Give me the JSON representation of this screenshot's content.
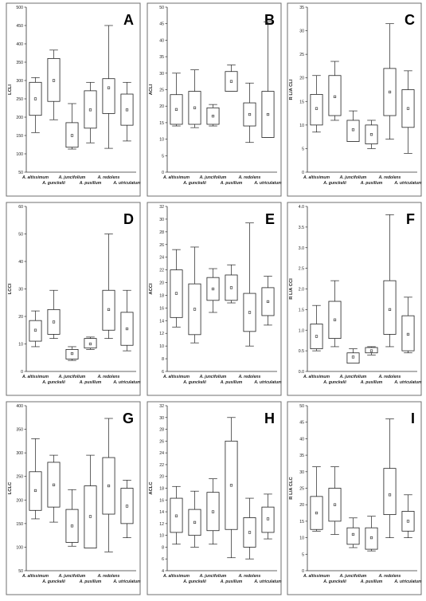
{
  "chart_data": [
    {
      "letter": "A",
      "type": "boxplot",
      "ylabel": "LCLI",
      "ylim": [
        50,
        500
      ],
      "yticks": [
        50,
        100,
        150,
        200,
        250,
        300,
        350,
        400,
        450,
        500
      ],
      "tick_step": 50,
      "boxes": [
        {
          "category": "A. altissimum",
          "min": 158,
          "q1": 205,
          "median": 250,
          "q3": 295,
          "max": 308,
          "mean": 250
        },
        {
          "category": "A. gunckelii",
          "min": 193,
          "q1": 243,
          "median": 300,
          "q3": 360,
          "max": 383,
          "mean": 300
        },
        {
          "category": "A. juncifolium",
          "min": 113,
          "q1": 118,
          "median": 150,
          "q3": 185,
          "max": 237,
          "mean": 150
        },
        {
          "category": "A. pusillum",
          "min": 130,
          "q1": 170,
          "median": 220,
          "q3": 272,
          "max": 295,
          "mean": 220
        },
        {
          "category": "A. redolens",
          "min": 115,
          "q1": 210,
          "median": 280,
          "q3": 305,
          "max": 450,
          "mean": 280
        },
        {
          "category": "A. utriculatum",
          "min": 135,
          "q1": 178,
          "median": 220,
          "q3": 263,
          "max": 295,
          "mean": 220
        }
      ]
    },
    {
      "letter": "B",
      "type": "boxplot",
      "ylabel": "ACLI",
      "ylim": [
        0,
        50
      ],
      "yticks": [
        0,
        5,
        10,
        15,
        20,
        25,
        30,
        35,
        40,
        45,
        50
      ],
      "tick_step": 5,
      "boxes": [
        {
          "category": "A. altissimum",
          "min": 14,
          "q1": 14.5,
          "median": 19,
          "q3": 23.5,
          "max": 30,
          "mean": 19
        },
        {
          "category": "A. gunckelii",
          "min": 13.5,
          "q1": 14.5,
          "median": 19.5,
          "q3": 24.5,
          "max": 31,
          "mean": 19.5
        },
        {
          "category": "A. juncifolium",
          "min": 14,
          "q1": 14.5,
          "median": 17,
          "q3": 19.5,
          "max": 20.5,
          "mean": 17
        },
        {
          "category": "A. pusillum",
          "min": 24.5,
          "q1": 24.5,
          "median": 27.5,
          "q3": 30.5,
          "max": 32.5,
          "mean": 27.5
        },
        {
          "category": "A. redolens",
          "min": 9,
          "q1": 14,
          "median": 17.5,
          "q3": 21,
          "max": 27,
          "mean": 17.5
        },
        {
          "category": "A. utriculatum",
          "min": 10.5,
          "q1": 10.5,
          "median": 17.5,
          "q3": 24.5,
          "max": 45.5,
          "mean": 17.5
        }
      ]
    },
    {
      "letter": "C",
      "type": "boxplot",
      "ylabel": "R L/A CLI",
      "ylim": [
        0,
        35
      ],
      "yticks": [
        0,
        5,
        10,
        15,
        20,
        25,
        30,
        35
      ],
      "tick_step": 5,
      "boxes": [
        {
          "category": "A. altissimum",
          "min": 8.5,
          "q1": 10,
          "median": 13.5,
          "q3": 16.5,
          "max": 20.5,
          "mean": 13.5
        },
        {
          "category": "A. gunckelii",
          "min": 11,
          "q1": 12,
          "median": 16,
          "q3": 20.5,
          "max": 23.5,
          "mean": 16
        },
        {
          "category": "A. juncifolium",
          "min": 6.5,
          "q1": 6.5,
          "median": 9,
          "q3": 11,
          "max": 13,
          "mean": 9
        },
        {
          "category": "A. pusillum",
          "min": 5,
          "q1": 6,
          "median": 8,
          "q3": 10,
          "max": 11,
          "mean": 8
        },
        {
          "category": "A. redolens",
          "min": 7,
          "q1": 12,
          "median": 17,
          "q3": 22,
          "max": 31.5,
          "mean": 17
        },
        {
          "category": "A. utriculatum",
          "min": 4,
          "q1": 9.5,
          "median": 13.5,
          "q3": 17.5,
          "max": 21.5,
          "mean": 13.5
        }
      ]
    },
    {
      "letter": "D",
      "type": "boxplot",
      "ylabel": "LCCI",
      "ylim": [
        0,
        60
      ],
      "yticks": [
        0,
        10,
        20,
        30,
        40,
        50,
        60
      ],
      "tick_step": 10,
      "boxes": [
        {
          "category": "A. altissimum",
          "min": 9,
          "q1": 11,
          "median": 15,
          "q3": 18.5,
          "max": 22,
          "mean": 15
        },
        {
          "category": "A. gunckelii",
          "min": 12,
          "q1": 13.5,
          "median": 18,
          "q3": 22.5,
          "max": 29.5,
          "mean": 18
        },
        {
          "category": "A. juncifolium",
          "min": 4,
          "q1": 4.5,
          "median": 6.5,
          "q3": 8,
          "max": 9,
          "mean": 6.5
        },
        {
          "category": "A. pusillum",
          "min": 8,
          "q1": 8.5,
          "median": 10,
          "q3": 12,
          "max": 12.5,
          "mean": 10
        },
        {
          "category": "A. redolens",
          "min": 12,
          "q1": 15,
          "median": 22.5,
          "q3": 29.5,
          "max": 50,
          "mean": 22.5
        },
        {
          "category": "A. utriculatum",
          "min": 7.5,
          "q1": 9.5,
          "median": 15.5,
          "q3": 21.5,
          "max": 29.5,
          "mean": 15.5
        }
      ]
    },
    {
      "letter": "E",
      "type": "boxplot",
      "ylabel": "ACCI",
      "ylim": [
        6,
        32
      ],
      "yticks": [
        6,
        8,
        10,
        12,
        14,
        16,
        18,
        20,
        22,
        24,
        26,
        28,
        30,
        32
      ],
      "tick_step": 2,
      "boxes": [
        {
          "category": "A. altissimum",
          "min": 13,
          "q1": 14.5,
          "median": 18.3,
          "q3": 22,
          "max": 25.2,
          "mean": 18.3
        },
        {
          "category": "A. gunckelii",
          "min": 10.5,
          "q1": 11.8,
          "median": 15.8,
          "q3": 19.8,
          "max": 25.6,
          "mean": 15.8
        },
        {
          "category": "A. juncifolium",
          "min": 15.3,
          "q1": 17.2,
          "median": 19,
          "q3": 20.8,
          "max": 22.2,
          "mean": 19
        },
        {
          "category": "A. pusillum",
          "min": 16.8,
          "q1": 17.2,
          "median": 19.2,
          "q3": 21.2,
          "max": 22.8,
          "mean": 19.2
        },
        {
          "category": "A. redolens",
          "min": 10,
          "q1": 12.3,
          "median": 15.3,
          "q3": 18.3,
          "max": 29.4,
          "mean": 15.3
        },
        {
          "category": "A. utriculatum",
          "min": 13.3,
          "q1": 14.8,
          "median": 17,
          "q3": 19.2,
          "max": 21,
          "mean": 17
        }
      ]
    },
    {
      "letter": "F",
      "type": "boxplot",
      "ylabel": "R L/A CCI",
      "ylim": [
        0,
        4
      ],
      "yticks": [
        0,
        0.5,
        1.0,
        1.5,
        2.0,
        2.5,
        3.0,
        3.5,
        4.0
      ],
      "tick_step": 0.5,
      "boxes": [
        {
          "category": "A. altissimum",
          "min": 0.5,
          "q1": 0.55,
          "median": 0.85,
          "q3": 1.15,
          "max": 1.6,
          "mean": 0.85
        },
        {
          "category": "A. gunckelii",
          "min": 0.6,
          "q1": 0.8,
          "median": 1.25,
          "q3": 1.7,
          "max": 2.2,
          "mean": 1.25
        },
        {
          "category": "A. juncifolium",
          "min": 0.2,
          "q1": 0.2,
          "median": 0.35,
          "q3": 0.45,
          "max": 0.55,
          "mean": 0.35
        },
        {
          "category": "A. pusillum",
          "min": 0.4,
          "q1": 0.45,
          "median": 0.5,
          "q3": 0.58,
          "max": 0.6,
          "mean": 0.5
        },
        {
          "category": "A. redolens",
          "min": 0.6,
          "q1": 0.9,
          "median": 1.5,
          "q3": 2.2,
          "max": 3.8,
          "mean": 1.5
        },
        {
          "category": "A. utriculatum",
          "min": 0.45,
          "q1": 0.5,
          "median": 0.9,
          "q3": 1.35,
          "max": 1.8,
          "mean": 0.9
        }
      ]
    },
    {
      "letter": "G",
      "type": "boxplot",
      "ylabel": "LCLC",
      "ylim": [
        50,
        400
      ],
      "yticks": [
        50,
        100,
        150,
        200,
        250,
        300,
        350,
        400
      ],
      "tick_step": 50,
      "boxes": [
        {
          "category": "A. altissimum",
          "min": 160,
          "q1": 178,
          "median": 220,
          "q3": 260,
          "max": 330,
          "mean": 220
        },
        {
          "category": "A. gunckelii",
          "min": 153,
          "q1": 185,
          "median": 232,
          "q3": 280,
          "max": 295,
          "mean": 232
        },
        {
          "category": "A. juncifolium",
          "min": 102,
          "q1": 110,
          "median": 145,
          "q3": 180,
          "max": 222,
          "mean": 145
        },
        {
          "category": "A. pusillum",
          "min": 98,
          "q1": 98,
          "median": 165,
          "q3": 230,
          "max": 295,
          "mean": 165
        },
        {
          "category": "A. redolens",
          "min": 90,
          "q1": 170,
          "median": 230,
          "q3": 290,
          "max": 373,
          "mean": 230
        },
        {
          "category": "A. utriculatum",
          "min": 120,
          "q1": 150,
          "median": 187,
          "q3": 225,
          "max": 242,
          "mean": 187
        }
      ]
    },
    {
      "letter": "H",
      "type": "boxplot",
      "ylabel": "ACLC",
      "ylim": [
        4,
        32
      ],
      "yticks": [
        4,
        6,
        8,
        10,
        12,
        14,
        16,
        18,
        20,
        22,
        24,
        26,
        28,
        30,
        32
      ],
      "tick_step": 2,
      "boxes": [
        {
          "category": "A. altissimum",
          "min": 8.5,
          "q1": 10.5,
          "median": 13.3,
          "q3": 16.3,
          "max": 18.3,
          "mean": 13.3
        },
        {
          "category": "A. gunckelii",
          "min": 8,
          "q1": 10,
          "median": 12.2,
          "q3": 14.4,
          "max": 17.5,
          "mean": 12.2
        },
        {
          "category": "A. juncifolium",
          "min": 8.5,
          "q1": 10.8,
          "median": 14,
          "q3": 17.3,
          "max": 19.6,
          "mean": 14
        },
        {
          "category": "A. pusillum",
          "min": 6.2,
          "q1": 11,
          "median": 18.5,
          "q3": 26,
          "max": 30,
          "mean": 18.5
        },
        {
          "category": "A. redolens",
          "min": 6,
          "q1": 8,
          "median": 10.5,
          "q3": 13,
          "max": 16.3,
          "mean": 10.5
        },
        {
          "category": "A. utriculatum",
          "min": 9.4,
          "q1": 10.5,
          "median": 12.8,
          "q3": 14.8,
          "max": 17,
          "mean": 12.8
        }
      ]
    },
    {
      "letter": "I",
      "type": "boxplot",
      "ylabel": "R L/A CLC",
      "ylim": [
        0,
        50
      ],
      "yticks": [
        0,
        5,
        10,
        15,
        20,
        25,
        30,
        35,
        40,
        45,
        50
      ],
      "tick_step": 5,
      "boxes": [
        {
          "category": "A. altissimum",
          "min": 12,
          "q1": 12.5,
          "median": 17.5,
          "q3": 22.5,
          "max": 31.5,
          "mean": 17.5
        },
        {
          "category": "A. gunckelii",
          "min": 11,
          "q1": 15,
          "median": 20,
          "q3": 25,
          "max": 31.5,
          "mean": 20
        },
        {
          "category": "A. juncifolium",
          "min": 7,
          "q1": 8,
          "median": 11,
          "q3": 13,
          "max": 16,
          "mean": 11
        },
        {
          "category": "A. pusillum",
          "min": 6,
          "q1": 6.5,
          "median": 10,
          "q3": 13,
          "max": 16.5,
          "mean": 10
        },
        {
          "category": "A. redolens",
          "min": 10,
          "q1": 17,
          "median": 23,
          "q3": 31,
          "max": 46,
          "mean": 23
        },
        {
          "category": "A. utriculatum",
          "min": 10,
          "q1": 12,
          "median": 15,
          "q3": 18,
          "max": 23,
          "mean": 15
        }
      ]
    }
  ]
}
